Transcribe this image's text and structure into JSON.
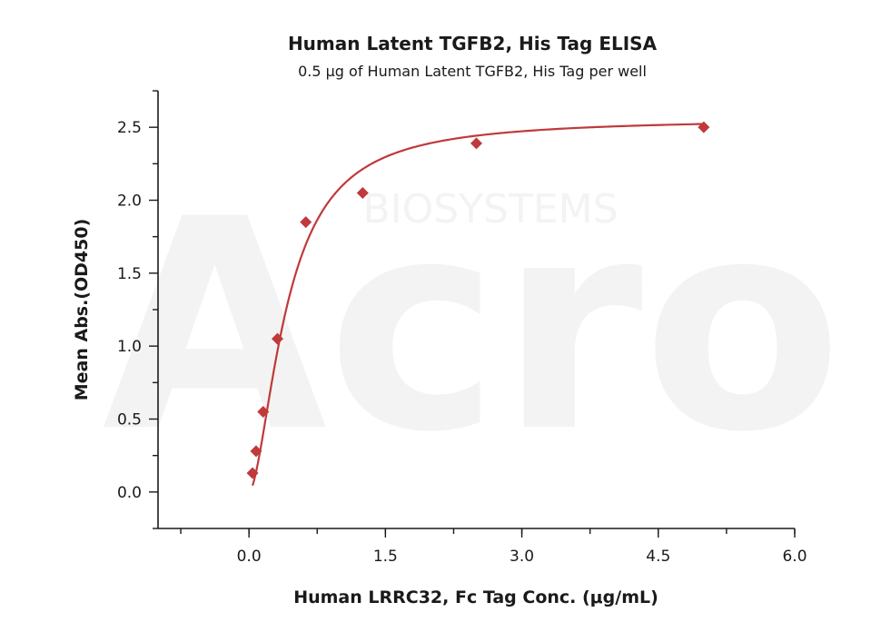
{
  "chart_data": {
    "type": "scatter",
    "title": "Human Latent TGFB2, His Tag ELISA",
    "subtitle": "0.5 μg of Human Latent TGFB2, His Tag per well",
    "xlabel": "Human LRRC32, Fc Tag Conc. (μg/mL)",
    "ylabel": "Mean Abs.(OD450)",
    "xlim": [
      -1.0,
      6.0
    ],
    "ylim": [
      -0.25,
      2.75
    ],
    "x_ticks": [
      "0.0",
      "1.5",
      "3.0",
      "4.5",
      "6.0"
    ],
    "x_tick_values": [
      0.0,
      1.5,
      3.0,
      4.5,
      6.0
    ],
    "y_ticks": [
      "0.0",
      "0.5",
      "1.0",
      "1.5",
      "2.0",
      "2.5"
    ],
    "y_tick_values": [
      0.0,
      0.5,
      1.0,
      1.5,
      2.0,
      2.5
    ],
    "grid": false,
    "legend": "none",
    "series": [
      {
        "points": [
          {
            "x": 0.039,
            "y": 0.13
          },
          {
            "x": 0.078,
            "y": 0.28
          },
          {
            "x": 0.156,
            "y": 0.55
          },
          {
            "x": 0.313,
            "y": 1.05
          },
          {
            "x": 0.625,
            "y": 1.85
          },
          {
            "x": 1.25,
            "y": 2.05
          },
          {
            "x": 2.5,
            "y": 2.39
          },
          {
            "x": 5.0,
            "y": 2.5
          }
        ],
        "fit": "4PL",
        "color": "#c0393b"
      }
    ],
    "watermark": {
      "big": "Acro",
      "small": "BIOSYSTEMS"
    }
  }
}
